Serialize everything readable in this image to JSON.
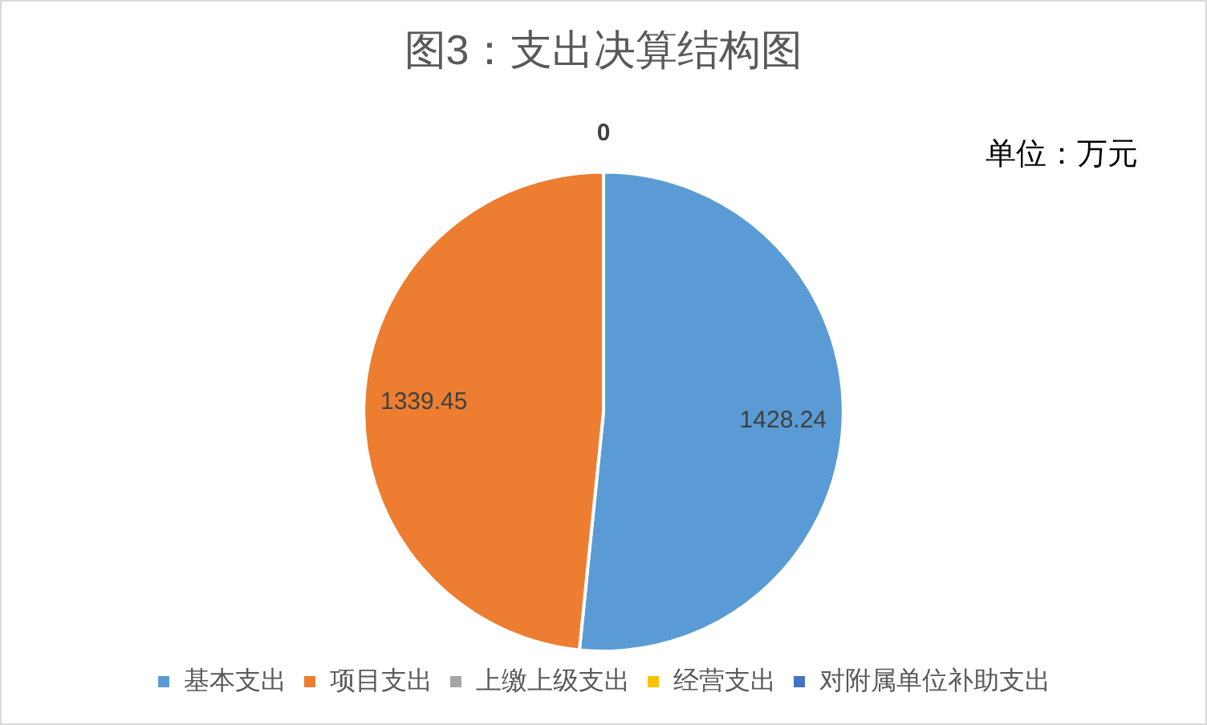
{
  "chart_data": {
    "type": "pie",
    "title": "图3：支出决算结构图",
    "categories": [
      "基本支出",
      "项目支出",
      "上缴上级支出",
      "经营支出",
      "对附属单位补助支出"
    ],
    "values": [
      1428.24,
      1339.45,
      0,
      0,
      0
    ],
    "colors": [
      "#5b9bd5",
      "#ed7d31",
      "#a5a5a5",
      "#ffc000",
      "#4472c4"
    ],
    "value_labels": [
      "1428.24",
      "1339.45",
      "0",
      null,
      null
    ],
    "annotations": [
      "单位：万元"
    ],
    "legend": "bottom"
  }
}
